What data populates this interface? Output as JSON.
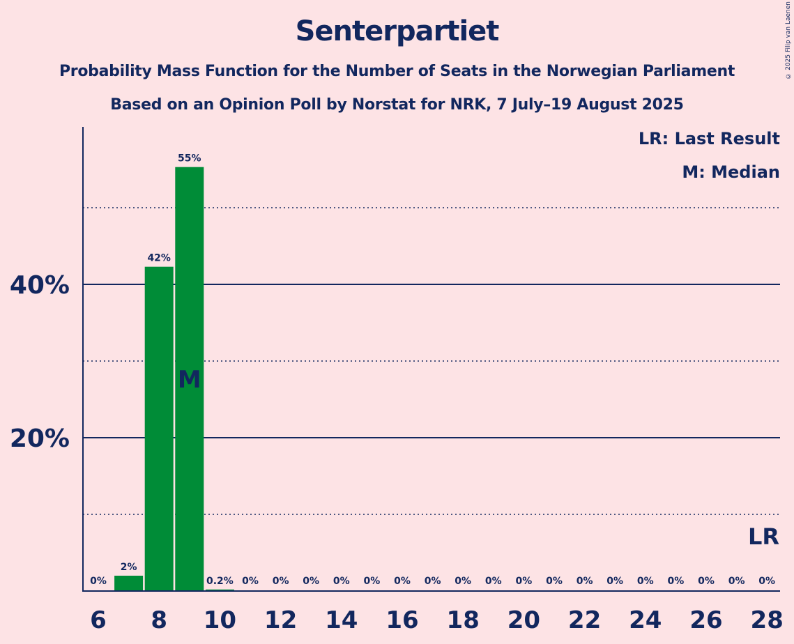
{
  "title": "Senterpartiet",
  "subtitle1": "Probability Mass Function for the Number of Seats in the Norwegian Parliament",
  "subtitle2": "Based on an Opinion Poll by Norstat for NRK, 7 July–19 August 2025",
  "copyright": "© 2025 Filip van Laenen",
  "legend": {
    "lr": "LR: Last Result",
    "m": "M: Median"
  },
  "colors": {
    "background": "#FDE3E5",
    "bar": "#008C37",
    "text": "#12275E"
  },
  "chart_data": {
    "type": "bar",
    "x": [
      6,
      7,
      8,
      9,
      10,
      11,
      12,
      13,
      14,
      15,
      16,
      17,
      18,
      19,
      20,
      21,
      22,
      23,
      24,
      25,
      26,
      27,
      28
    ],
    "values": [
      0,
      2,
      42.3,
      55.3,
      0.2,
      0,
      0,
      0,
      0,
      0,
      0,
      0,
      0,
      0,
      0,
      0,
      0,
      0,
      0,
      0,
      0,
      0,
      0
    ],
    "value_labels": [
      "0%",
      "2%",
      "42%",
      "55%",
      "0.2%",
      "0%",
      "0%",
      "0%",
      "0%",
      "0%",
      "0%",
      "0%",
      "0%",
      "0%",
      "0%",
      "0%",
      "0%",
      "0%",
      "0%",
      "0%",
      "0%",
      "0%",
      "0%"
    ],
    "x_tick_labels": [
      "6",
      "8",
      "10",
      "12",
      "14",
      "16",
      "18",
      "20",
      "22",
      "24",
      "26",
      "28"
    ],
    "y_ticks": [
      {
        "value": 20,
        "label": "20%"
      },
      {
        "value": 40,
        "label": "40%"
      }
    ],
    "y_minor_gridlines": [
      10,
      30,
      50
    ],
    "ylim": [
      0,
      60
    ],
    "median_seat": 9,
    "median_marker": "M",
    "last_result_seat": 28,
    "last_result_marker": "LR"
  }
}
